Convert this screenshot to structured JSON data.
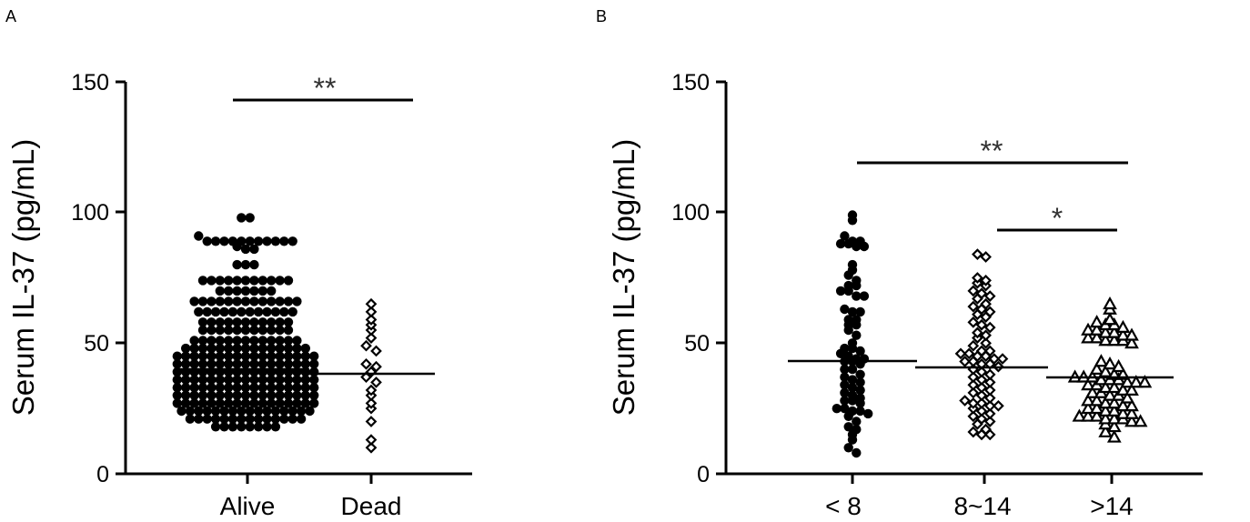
{
  "chart_data": [
    {
      "panel_label": "A",
      "type": "scatter",
      "ylabel": "Serum IL-37 (pg/mL)",
      "ylim": [
        0,
        150
      ],
      "yticks": [
        "0",
        "50",
        "100",
        "150"
      ],
      "categories": [
        "Alive",
        "Dead"
      ],
      "groups": [
        {
          "name": "Alive",
          "marker": "circle-filled",
          "median": 40,
          "values": [
            98,
            98,
            91,
            89,
            89,
            89,
            89,
            89,
            89,
            89,
            89,
            89,
            89,
            89,
            87,
            86,
            86,
            80,
            80,
            80,
            74,
            74,
            74,
            74,
            74,
            74,
            74,
            74,
            74,
            74,
            74,
            70,
            70,
            70,
            70,
            70,
            70,
            70,
            66,
            66,
            66,
            66,
            66,
            66,
            66,
            66,
            66,
            66,
            66,
            66,
            66,
            62,
            62,
            62,
            62,
            62,
            62,
            62,
            62,
            62,
            62,
            62,
            62,
            58,
            58,
            58,
            58,
            58,
            58,
            58,
            58,
            58,
            58,
            58,
            55,
            55,
            55,
            55,
            55,
            55,
            55,
            55,
            55,
            55,
            55,
            51,
            51,
            51,
            51,
            51,
            51,
            51,
            51,
            51,
            51,
            51,
            51,
            51,
            48,
            48,
            48,
            48,
            48,
            48,
            48,
            48,
            48,
            48,
            48,
            48,
            48,
            48,
            48,
            45,
            45,
            45,
            45,
            45,
            45,
            45,
            45,
            45,
            45,
            45,
            45,
            45,
            45,
            45,
            45,
            45,
            42,
            42,
            42,
            42,
            42,
            42,
            42,
            42,
            42,
            42,
            42,
            42,
            42,
            42,
            42,
            42,
            42,
            39,
            39,
            39,
            39,
            39,
            39,
            39,
            39,
            39,
            39,
            39,
            39,
            39,
            39,
            39,
            39,
            39,
            36,
            36,
            36,
            36,
            36,
            36,
            36,
            36,
            36,
            36,
            36,
            36,
            36,
            36,
            36,
            36,
            36,
            33,
            33,
            33,
            33,
            33,
            33,
            33,
            33,
            33,
            33,
            33,
            33,
            33,
            33,
            33,
            33,
            33,
            30,
            30,
            30,
            30,
            30,
            30,
            30,
            30,
            30,
            30,
            30,
            30,
            30,
            30,
            30,
            30,
            30,
            27,
            27,
            27,
            27,
            27,
            27,
            27,
            27,
            27,
            27,
            27,
            27,
            27,
            27,
            27,
            27,
            27,
            24,
            24,
            24,
            24,
            24,
            24,
            24,
            24,
            24,
            24,
            24,
            24,
            24,
            24,
            24,
            24,
            21,
            21,
            21,
            21,
            21,
            21,
            21,
            21,
            21,
            21,
            21,
            21,
            21,
            21,
            18,
            18,
            18,
            18,
            18,
            18,
            18,
            18
          ]
        },
        {
          "name": "Dead",
          "marker": "diamond-open",
          "median": 38,
          "values": [
            65,
            62,
            59,
            57,
            55,
            52,
            49,
            47,
            42,
            41,
            39,
            37,
            35,
            32,
            30,
            27,
            25,
            20,
            13,
            10
          ]
        }
      ],
      "comparisons": [
        {
          "from": "Alive",
          "to": "Dead",
          "label": "**"
        }
      ]
    },
    {
      "panel_label": "B",
      "type": "scatter",
      "ylabel": "Serum IL-37 (pg/mL)",
      "ylim": [
        0,
        150
      ],
      "yticks": [
        "0",
        "50",
        "100",
        "150"
      ],
      "categories": [
        "< 8",
        "8~14",
        ">14"
      ],
      "groups": [
        {
          "name": "< 8",
          "marker": "circle-filled",
          "median": 43,
          "values": [
            99,
            97,
            91,
            89,
            89,
            88,
            88,
            87,
            87,
            80,
            78,
            76,
            74,
            72,
            72,
            70,
            70,
            68,
            68,
            63,
            62,
            62,
            59,
            59,
            57,
            57,
            55,
            53,
            50,
            48,
            48,
            47,
            46,
            45,
            44,
            44,
            43,
            43,
            42,
            40,
            40,
            38,
            37,
            36,
            35,
            34,
            33,
            32,
            31,
            30,
            29,
            28,
            28,
            27,
            25,
            25,
            24,
            24,
            23,
            22,
            20,
            18,
            17,
            15,
            13,
            10,
            8
          ]
        },
        {
          "name": "8~14",
          "marker": "diamond-open",
          "median": 41,
          "values": [
            84,
            83,
            75,
            74,
            73,
            72,
            70,
            69,
            68,
            67,
            65,
            64,
            63,
            62,
            61,
            60,
            58,
            57,
            56,
            54,
            53,
            52,
            50,
            49,
            47,
            47,
            46,
            46,
            45,
            45,
            44,
            44,
            43,
            43,
            42,
            42,
            41,
            40,
            39,
            38,
            37,
            36,
            35,
            34,
            33,
            32,
            31,
            30,
            29,
            28,
            27,
            27,
            26,
            26,
            25,
            24,
            23,
            22,
            21,
            20,
            19,
            17,
            16,
            15,
            15
          ]
        },
        {
          "name": ">14",
          "marker": "triangle-open",
          "median": 37,
          "values": [
            65,
            63,
            59,
            58,
            57,
            57,
            56,
            55,
            55,
            54,
            54,
            53,
            53,
            52,
            52,
            51,
            51,
            51,
            50,
            43,
            42,
            41,
            40,
            39,
            38,
            38,
            37,
            37,
            37,
            36,
            36,
            36,
            35,
            35,
            35,
            34,
            34,
            33,
            33,
            32,
            32,
            31,
            31,
            30,
            30,
            29,
            28,
            28,
            27,
            27,
            26,
            26,
            25,
            25,
            24,
            24,
            23,
            23,
            22,
            22,
            22,
            21,
            21,
            21,
            20,
            20,
            19,
            18,
            16,
            14
          ]
        }
      ],
      "comparisons": [
        {
          "from": "< 8",
          "to": ">14",
          "label": "**"
        },
        {
          "from": "8~14",
          "to": ">14",
          "label": "*"
        }
      ]
    }
  ]
}
